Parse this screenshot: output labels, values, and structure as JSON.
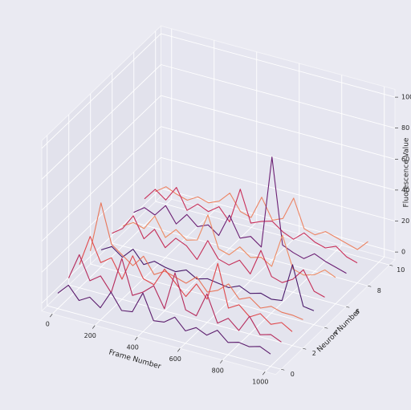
{
  "chart_data": {
    "type": "line3d",
    "xlabel": "Frame Number",
    "ylabel": "Neuron Number",
    "zlabel": "Fluorescence Value",
    "x": [
      0,
      50,
      100,
      150,
      200,
      250,
      300,
      350,
      400,
      450,
      500,
      550,
      600,
      650,
      700,
      750,
      800,
      850,
      900,
      950,
      1000
    ],
    "xlim": [
      -50,
      1050
    ],
    "xticks": [
      0,
      200,
      400,
      600,
      800,
      1000
    ],
    "ylim": [
      -0.5,
      10.5
    ],
    "yticks": [
      0,
      2,
      4,
      6,
      8,
      10
    ],
    "zlim": [
      -5,
      105
    ],
    "zticks": [
      0,
      20,
      40,
      60,
      80,
      100
    ],
    "grid": true,
    "series": [
      {
        "neuron": 0,
        "color": "#5c1d6d",
        "values": [
          5,
          12,
          4,
          8,
          3,
          15,
          5,
          6,
          20,
          4,
          5,
          10,
          3,
          7,
          4,
          9,
          3,
          5,
          4,
          6,
          3
        ]
      },
      {
        "neuron": 1,
        "color": "#b52a5b",
        "values": [
          8,
          25,
          10,
          15,
          6,
          30,
          8,
          12,
          18,
          5,
          30,
          8,
          6,
          22,
          5,
          10,
          4,
          15,
          5,
          7,
          4
        ]
      },
      {
        "neuron": 2,
        "color": "#e0474b",
        "values": [
          10,
          30,
          15,
          20,
          8,
          25,
          12,
          10,
          22,
          15,
          8,
          18,
          10,
          35,
          8,
          12,
          6,
          10,
          5,
          8,
          4
        ]
      },
      {
        "neuron": 3,
        "color": "#e8765a",
        "values": [
          12,
          45,
          20,
          15,
          10,
          18,
          8,
          12,
          10,
          8,
          14,
          6,
          9,
          15,
          7,
          10,
          5,
          8,
          6,
          6,
          5
        ]
      },
      {
        "neuron": 4,
        "color": "#4a1a6b",
        "values": [
          6,
          10,
          5,
          12,
          4,
          8,
          6,
          5,
          8,
          4,
          6,
          5,
          4,
          7,
          4,
          6,
          4,
          5,
          30,
          5,
          4
        ]
      },
      {
        "neuron": 5,
        "color": "#c52f58",
        "values": [
          10,
          15,
          25,
          12,
          20,
          10,
          18,
          15,
          8,
          22,
          12,
          10,
          15,
          8,
          25,
          10,
          8,
          12,
          20,
          8,
          6
        ]
      },
      {
        "neuron": 6,
        "color": "#ee8a62",
        "values": [
          8,
          12,
          10,
          20,
          8,
          15,
          10,
          12,
          30,
          10,
          8,
          15,
          10,
          12,
          8,
          30,
          10,
          8,
          10,
          15,
          12
        ]
      },
      {
        "neuron": 7,
        "color": "#6b1f73",
        "values": [
          10,
          15,
          12,
          20,
          10,
          18,
          12,
          15,
          10,
          25,
          12,
          15,
          10,
          70,
          15,
          12,
          10,
          15,
          12,
          10,
          8
        ]
      },
      {
        "neuron": 8,
        "color": "#c9305a",
        "values": [
          12,
          20,
          15,
          25,
          12,
          18,
          15,
          20,
          12,
          35,
          15,
          18,
          20,
          15,
          12,
          18,
          14,
          12,
          15,
          10,
          8
        ]
      },
      {
        "neuron": 9,
        "color": "#ec8464",
        "values": [
          10,
          15,
          12,
          10,
          14,
          12,
          15,
          22,
          12,
          10,
          25,
          12,
          15,
          30,
          12,
          10,
          14,
          12,
          10,
          8,
          15
        ]
      }
    ]
  }
}
